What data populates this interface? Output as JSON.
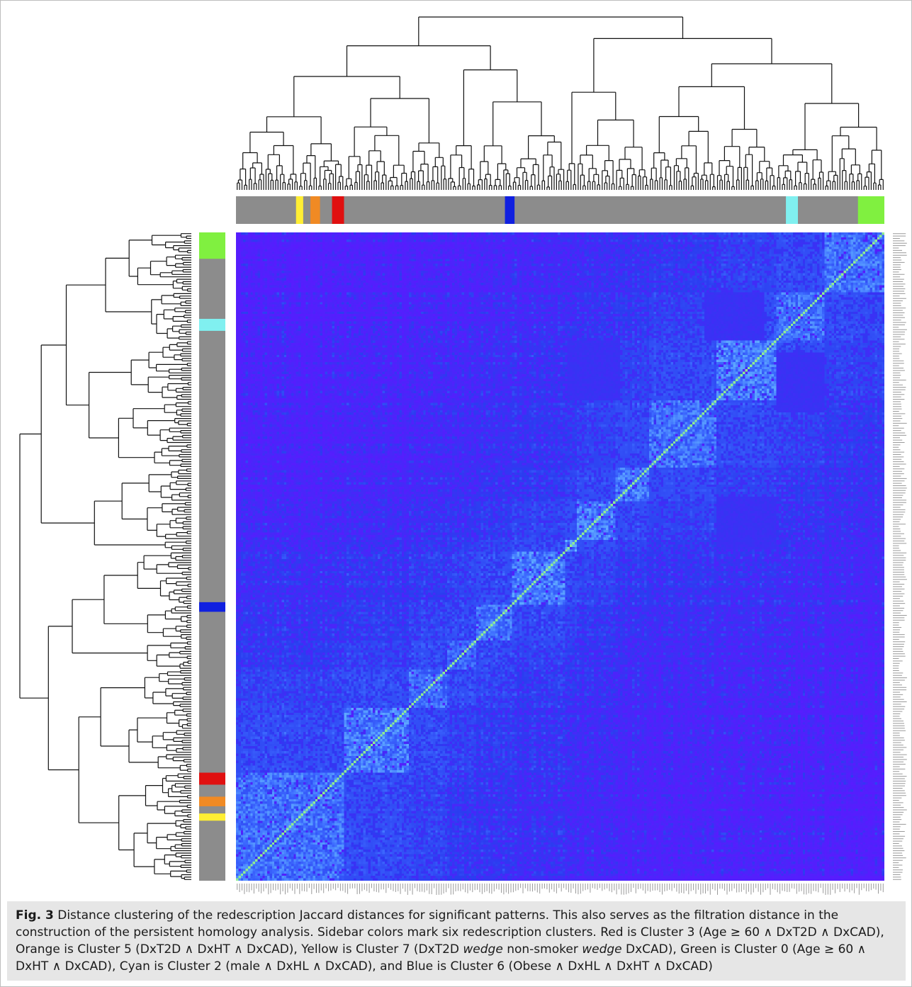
{
  "chart_data": {
    "type": "heatmap",
    "title": "",
    "xlabel": "",
    "ylabel": "",
    "n_items": 270,
    "colorscale": {
      "min_color": "#5a1aff",
      "low_color": "#2b3cf0",
      "mid_color": "#3d6cff",
      "high_color": "#6fc8ff",
      "max_color": "#90ee90",
      "range": [
        0,
        1
      ]
    },
    "diagonal_blocks": [
      {
        "start": 0,
        "end": 45,
        "similarity": 0.55
      },
      {
        "start": 45,
        "end": 72,
        "similarity": 0.6
      },
      {
        "start": 72,
        "end": 88,
        "similarity": 0.55
      },
      {
        "start": 88,
        "end": 100,
        "similarity": 0.5
      },
      {
        "start": 100,
        "end": 115,
        "similarity": 0.55
      },
      {
        "start": 115,
        "end": 137,
        "similarity": 0.6
      },
      {
        "start": 137,
        "end": 142,
        "similarity": 0.7
      },
      {
        "start": 142,
        "end": 158,
        "similarity": 0.6
      },
      {
        "start": 158,
        "end": 172,
        "similarity": 0.6
      },
      {
        "start": 172,
        "end": 200,
        "similarity": 0.55
      },
      {
        "start": 200,
        "end": 225,
        "similarity": 0.6
      },
      {
        "start": 225,
        "end": 245,
        "similarity": 0.55
      },
      {
        "start": 245,
        "end": 270,
        "similarity": 0.55
      }
    ],
    "flat_blocks": [
      {
        "rows": [
          200,
          225
        ],
        "cols": [
          138,
          160
        ],
        "similarity": 0.12
      },
      {
        "rows": [
          225,
          245
        ],
        "cols": [
          195,
          220
        ],
        "similarity": 0.12
      }
    ],
    "sidebar": {
      "base_color": "#8c8c8c",
      "clusters": [
        {
          "name": "Cluster 7",
          "color": "#ffee33",
          "start": 25,
          "end": 28
        },
        {
          "name": "Cluster 5",
          "color": "#f08a24",
          "start": 31,
          "end": 35
        },
        {
          "name": "Cluster 3",
          "color": "#e01010",
          "start": 40,
          "end": 45
        },
        {
          "name": "Cluster 6",
          "color": "#1020e0",
          "start": 112,
          "end": 116
        },
        {
          "name": "Cluster 2",
          "color": "#80f0f0",
          "start": 229,
          "end": 234
        },
        {
          "name": "Cluster 0",
          "color": "#80f040",
          "start": 259,
          "end": 270
        }
      ]
    }
  },
  "caption": {
    "fig_label": "Fig. 3",
    "part1": " Distance clustering of the redescription Jaccard distances for significant patterns. This also serves as the filtration distance in the construction of the persistent homology analysis. Sidebar colors mark six redescription clusters. Red is Cluster 3 (Age ≥ 60 ∧ DxT2D ∧ DxCAD), Orange is Cluster 5 (DxT2D ∧ DxHT ∧ DxCAD), Yellow is Cluster 7 (DxT2D ",
    "wedge1": "wedge",
    "part2": " non-smoker ",
    "wedge2": "wedge",
    "part3": " DxCAD), Green is Cluster 0 (Age ≥ 60 ∧ DxHT ∧ DxCAD), Cyan is Cluster 2 (male ∧ DxHL ∧ DxCAD), and Blue is Cluster 6 (Obese ∧ DxHL ∧ DxHT ∧ DxCAD)"
  }
}
